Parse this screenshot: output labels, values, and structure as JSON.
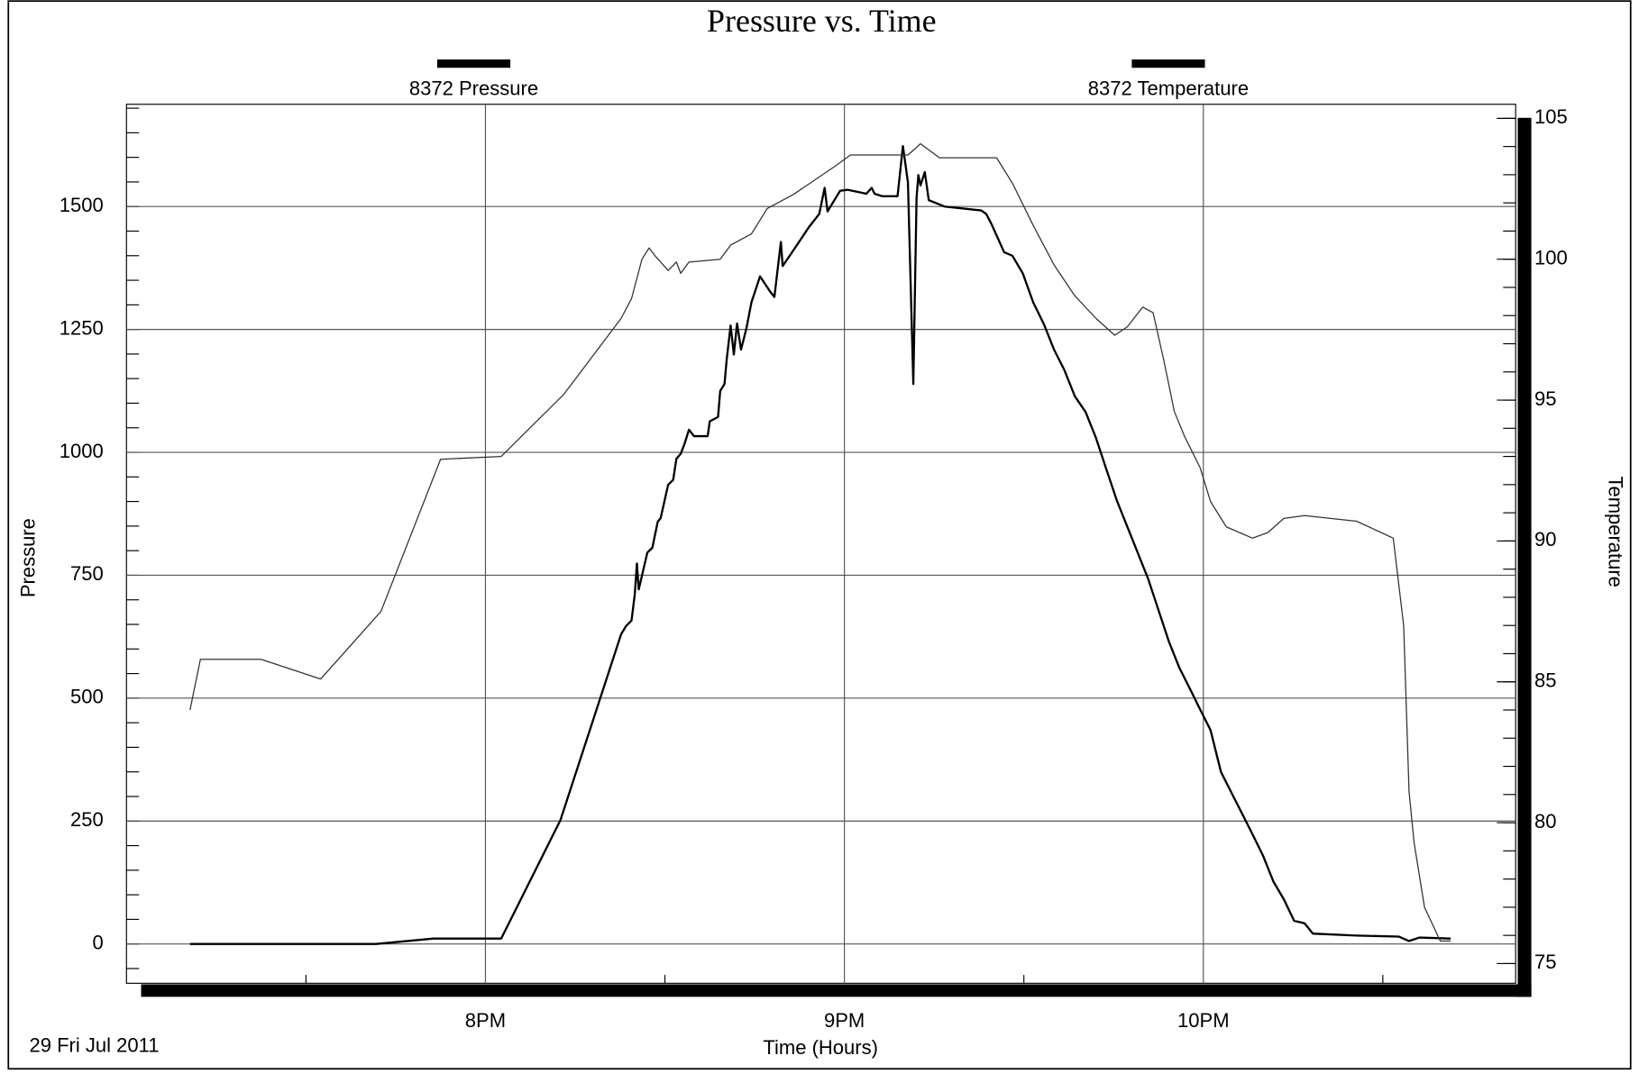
{
  "chart_data": {
    "type": "line",
    "title": "Pressure vs. Time",
    "xlabel": "Time (Hours)",
    "ylabel": "Pressure",
    "y2label": "Temperature",
    "footnote": "29 Fri Jul 2011",
    "xlim": [
      19.0,
      22.87
    ],
    "xticks": [
      {
        "value": 20,
        "label": "8PM"
      },
      {
        "value": 21,
        "label": "9PM"
      },
      {
        "value": 22,
        "label": "10PM"
      }
    ],
    "xminorticks": [
      19.5,
      20.5,
      21.5,
      22.5
    ],
    "ylim": [
      -80,
      1708
    ],
    "yticks": [
      0,
      250,
      500,
      750,
      1000,
      1250,
      1500
    ],
    "yminorticks": [
      -50,
      0,
      50,
      100,
      150,
      200,
      250,
      300,
      350,
      400,
      450,
      500,
      550,
      600,
      650,
      700,
      750,
      800,
      850,
      900,
      950,
      1000,
      1050,
      1100,
      1150,
      1200,
      1250,
      1300,
      1350,
      1400,
      1450,
      1500,
      1550,
      1600,
      1650,
      1700
    ],
    "y2lim": [
      74.3,
      105.5
    ],
    "y2ticks": [
      75,
      80,
      85,
      90,
      95,
      100,
      105
    ],
    "y2minorticks": [
      75,
      76,
      77,
      78,
      79,
      80,
      81,
      82,
      83,
      84,
      85,
      86,
      87,
      88,
      89,
      90,
      91,
      92,
      93,
      94,
      95,
      96,
      97,
      98,
      99,
      100,
      101,
      102,
      103,
      104,
      105
    ],
    "grid": true,
    "legend": "top",
    "series": [
      {
        "name": "8372 Pressure",
        "color": "#000000",
        "x": [
          19.177,
          19.695,
          19.855,
          20.044,
          20.209,
          20.378,
          20.392,
          20.407,
          20.416,
          20.422,
          20.427,
          20.451,
          20.465,
          20.48,
          20.488,
          20.509,
          20.523,
          20.532,
          20.544,
          20.555,
          20.567,
          20.581,
          20.619,
          20.625,
          20.648,
          20.654,
          20.666,
          20.672,
          20.683,
          20.692,
          20.701,
          20.712,
          20.727,
          20.741,
          20.765,
          20.794,
          20.805,
          20.823,
          20.828,
          20.858,
          20.901,
          20.93,
          20.945,
          20.953,
          20.988,
          21.009,
          21.061,
          21.076,
          21.084,
          21.105,
          21.148,
          21.163,
          21.177,
          21.192,
          21.201,
          21.206,
          21.212,
          21.224,
          21.235,
          21.279,
          21.381,
          21.395,
          21.41,
          21.445,
          21.468,
          21.497,
          21.526,
          21.555,
          21.584,
          21.613,
          21.642,
          21.672,
          21.701,
          21.73,
          21.759,
          21.788,
          21.817,
          21.846,
          21.875,
          21.904,
          21.933,
          21.962,
          21.991,
          22.02,
          22.049,
          22.078,
          22.108,
          22.137,
          22.166,
          22.195,
          22.224,
          22.253,
          22.282,
          22.305,
          22.427,
          22.544,
          22.573,
          22.602,
          22.689
        ],
        "values": [
          0,
          0,
          11,
          11,
          252,
          630,
          647,
          658,
          711,
          774,
          721,
          796,
          806,
          859,
          866,
          934,
          944,
          987,
          997,
          1018,
          1046,
          1033,
          1033,
          1063,
          1072,
          1125,
          1139,
          1188,
          1258,
          1199,
          1262,
          1209,
          1252,
          1305,
          1358,
          1326,
          1316,
          1428,
          1379,
          1411,
          1458,
          1485,
          1538,
          1490,
          1532,
          1534,
          1526,
          1538,
          1526,
          1521,
          1521,
          1623,
          1549,
          1139,
          1517,
          1564,
          1543,
          1570,
          1513,
          1500,
          1492,
          1485,
          1464,
          1407,
          1400,
          1364,
          1305,
          1262,
          1209,
          1167,
          1114,
          1082,
          1029,
          965,
          902,
          849,
          796,
          743,
          679,
          615,
          562,
          520,
          477,
          435,
          350,
          308,
          265,
          223,
          180,
          127,
          91,
          47,
          42,
          21,
          17,
          15,
          6,
          13,
          11
        ]
      },
      {
        "name": "8372 Temperature",
        "color": "#333333",
        "axis": "y2",
        "x": [
          19.177,
          19.206,
          19.375,
          19.541,
          19.709,
          19.875,
          20.044,
          20.218,
          20.378,
          20.407,
          20.436,
          20.456,
          20.474,
          20.509,
          20.532,
          20.544,
          20.567,
          20.654,
          20.683,
          20.741,
          20.785,
          20.858,
          20.974,
          21.017,
          21.119,
          21.154,
          21.177,
          21.195,
          21.212,
          21.265,
          21.424,
          21.468,
          21.526,
          21.584,
          21.642,
          21.701,
          21.753,
          21.788,
          21.831,
          21.86,
          21.89,
          21.919,
          21.948,
          21.991,
          22.02,
          22.064,
          22.137,
          22.18,
          22.224,
          22.282,
          22.427,
          22.529,
          22.558,
          22.573,
          22.587,
          22.616,
          22.66,
          22.689
        ],
        "values": [
          84.0,
          85.8,
          85.8,
          85.1,
          87.5,
          92.9,
          93.0,
          95.2,
          97.9,
          98.6,
          100.0,
          100.4,
          100.1,
          99.6,
          99.9,
          99.5,
          99.9,
          100.0,
          100.5,
          100.9,
          101.8,
          102.3,
          103.3,
          103.7,
          103.7,
          103.7,
          103.7,
          103.9,
          104.1,
          103.6,
          103.6,
          102.7,
          101.2,
          99.8,
          98.7,
          97.9,
          97.3,
          97.6,
          98.3,
          98.1,
          96.4,
          94.6,
          93.7,
          92.6,
          91.4,
          90.5,
          90.1,
          90.3,
          90.8,
          90.9,
          90.7,
          90.1,
          87.0,
          81.1,
          79.3,
          77.0,
          75.8,
          75.8
        ]
      }
    ]
  }
}
